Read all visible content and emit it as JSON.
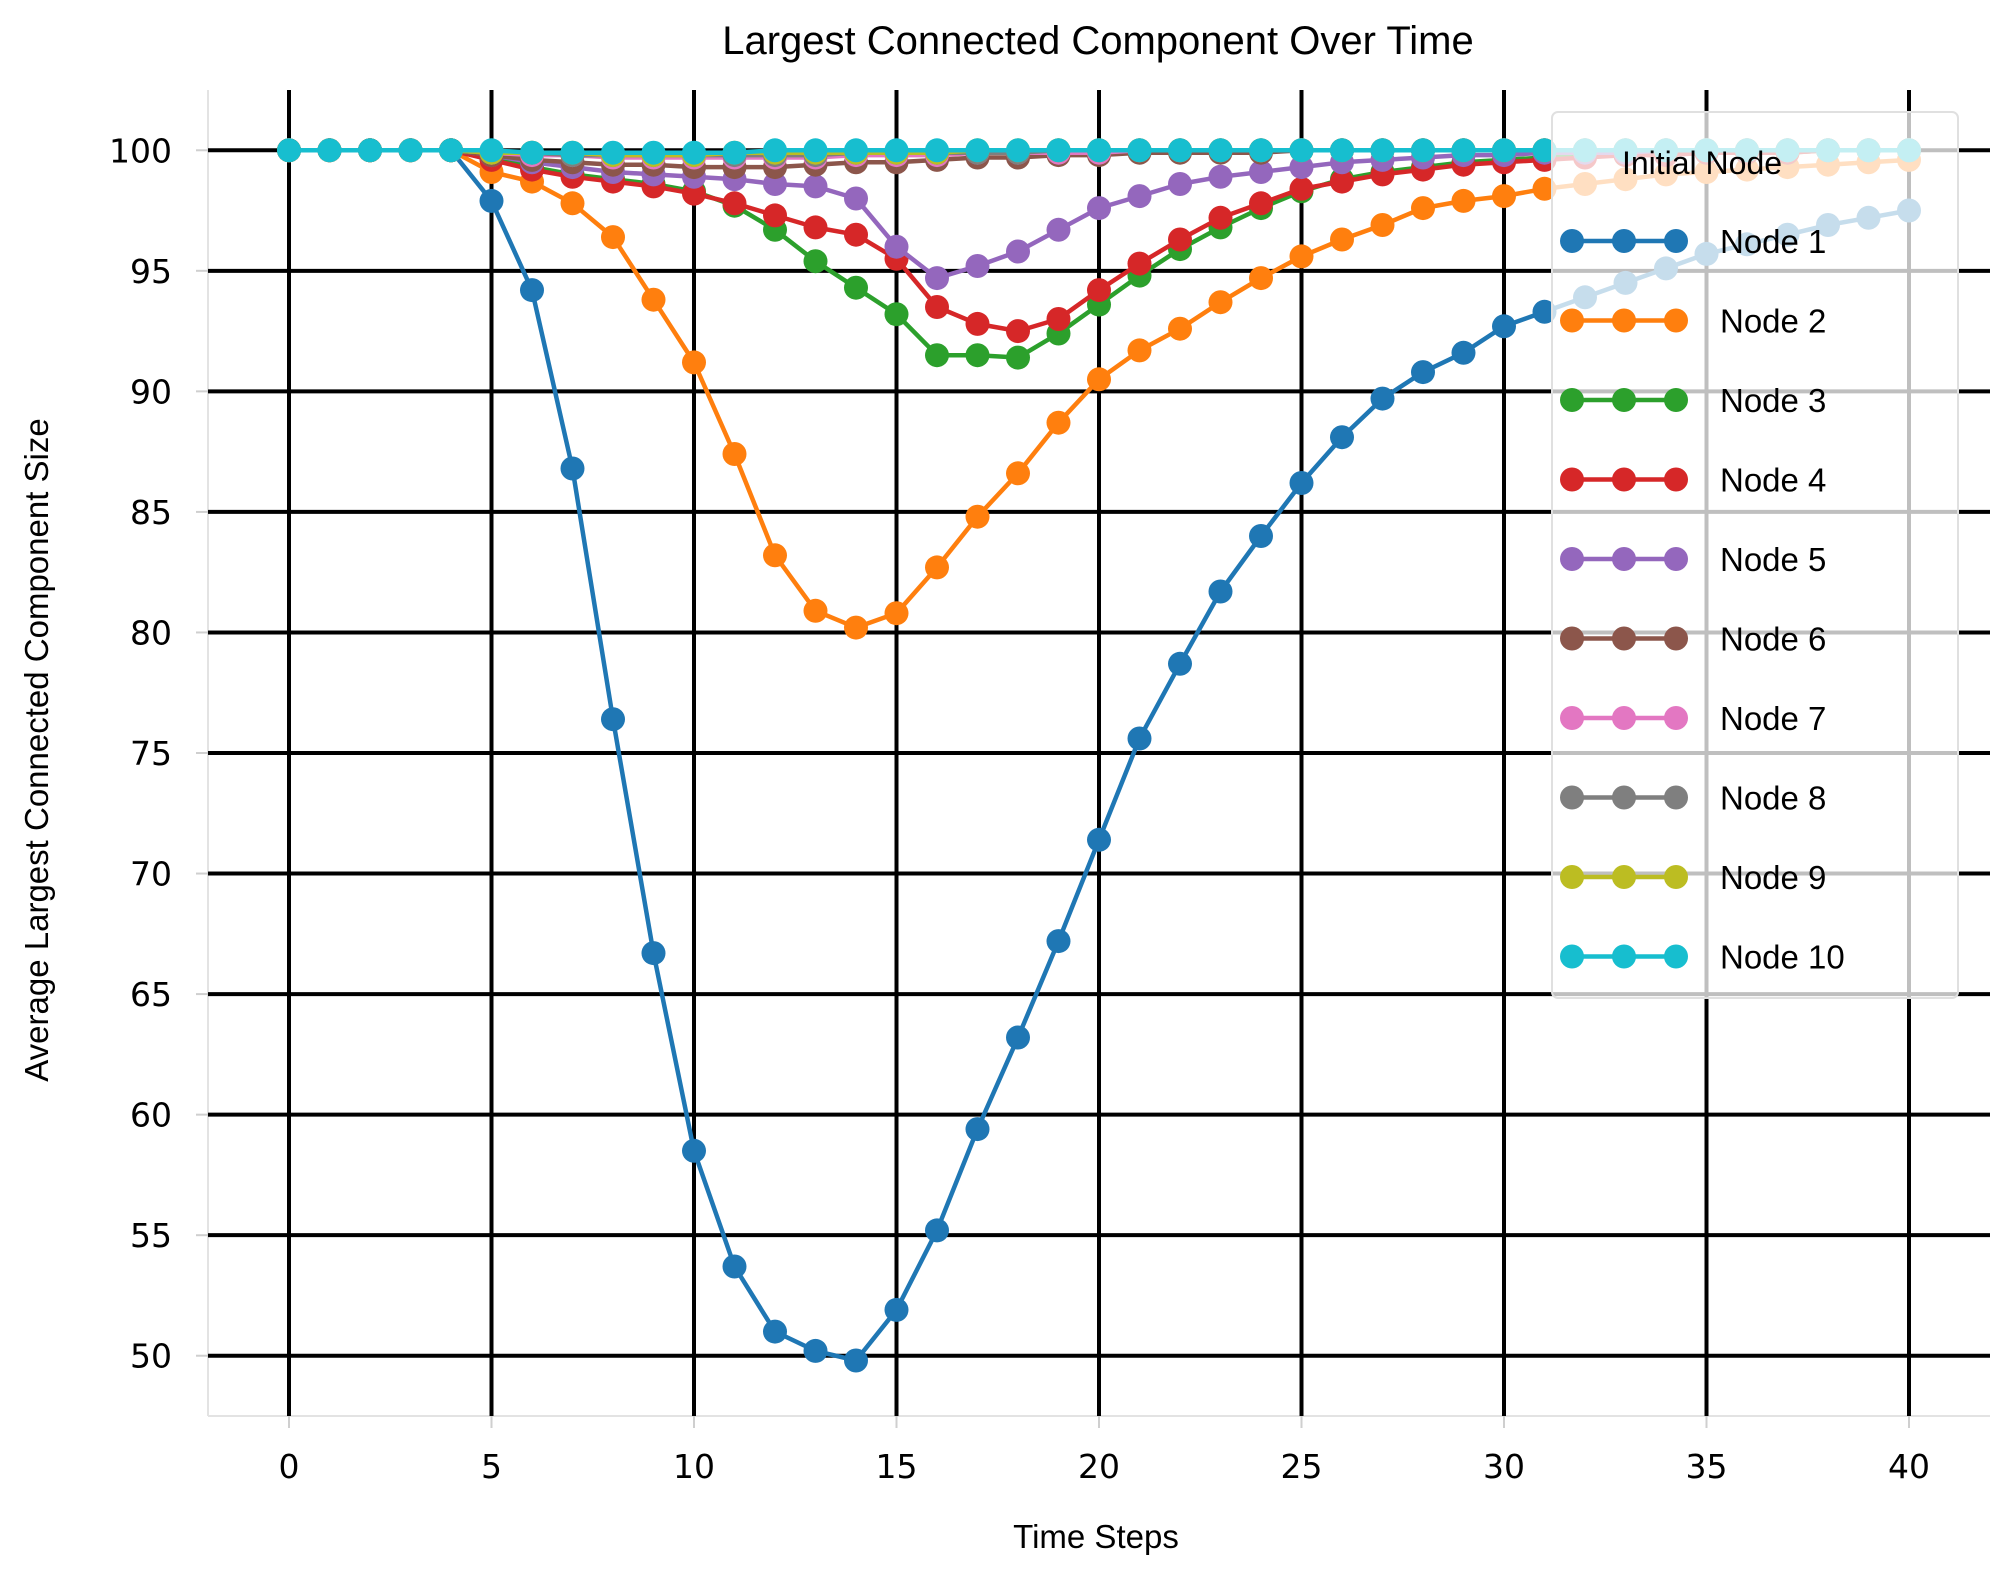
{
  "chart_data": {
    "type": "line",
    "title": "Largest Connected Component Over Time",
    "xlabel": "Time Steps",
    "ylabel": "Average Largest Connected Component Size",
    "xlim": [
      -2,
      42
    ],
    "ylim": [
      47.5,
      102.5
    ],
    "xticks": [
      0,
      5,
      10,
      15,
      20,
      25,
      30,
      35,
      40
    ],
    "yticks": [
      50,
      55,
      60,
      65,
      70,
      75,
      80,
      85,
      90,
      95,
      100
    ],
    "grid": true,
    "legend_title": "Initial Node",
    "legend_position": "top-right",
    "x": [
      0,
      1,
      2,
      3,
      4,
      5,
      6,
      7,
      8,
      9,
      10,
      11,
      12,
      13,
      14,
      15,
      16,
      17,
      18,
      19,
      20,
      21,
      22,
      23,
      24,
      25,
      26,
      27,
      28,
      29,
      30,
      31,
      32,
      33,
      34,
      35,
      36,
      37,
      38,
      39,
      40
    ],
    "series": [
      {
        "name": "Node 1",
        "color": "#1f77b4",
        "values": [
          100,
          100,
          100,
          100,
          100,
          97.9,
          94.2,
          86.8,
          76.4,
          66.7,
          58.5,
          53.7,
          51.0,
          50.2,
          49.8,
          51.9,
          55.2,
          59.4,
          63.2,
          67.2,
          71.4,
          75.6,
          78.7,
          81.7,
          84.0,
          86.2,
          88.1,
          89.7,
          90.8,
          91.6,
          92.7,
          93.3,
          93.9,
          94.5,
          95.1,
          95.7,
          96.1,
          96.5,
          96.9,
          97.2,
          97.5
        ]
      },
      {
        "name": "Node 2",
        "color": "#ff7f0e",
        "values": [
          100,
          100,
          100,
          100,
          100,
          99.1,
          98.7,
          97.8,
          96.4,
          93.8,
          91.2,
          87.4,
          83.2,
          80.9,
          80.2,
          80.8,
          82.7,
          84.8,
          86.6,
          88.7,
          90.5,
          91.7,
          92.6,
          93.7,
          94.7,
          95.6,
          96.3,
          96.9,
          97.6,
          97.9,
          98.1,
          98.4,
          98.6,
          98.8,
          99.0,
          99.1,
          99.2,
          99.3,
          99.4,
          99.5,
          99.6
        ]
      },
      {
        "name": "Node 3",
        "color": "#2ca02c",
        "values": [
          100,
          100,
          100,
          100,
          100,
          99.7,
          99.3,
          99.0,
          98.8,
          98.6,
          98.3,
          97.7,
          96.7,
          95.4,
          94.3,
          93.2,
          91.5,
          91.5,
          91.4,
          92.4,
          93.6,
          94.8,
          95.9,
          96.8,
          97.6,
          98.3,
          98.8,
          99.1,
          99.3,
          99.5,
          99.6,
          99.7,
          99.8,
          99.8,
          99.9,
          99.9,
          99.9,
          99.9,
          100,
          100,
          100
        ]
      },
      {
        "name": "Node 4",
        "color": "#d62728",
        "values": [
          100,
          100,
          100,
          100,
          100,
          99.6,
          99.2,
          98.9,
          98.7,
          98.5,
          98.2,
          97.8,
          97.3,
          96.8,
          96.5,
          95.5,
          93.5,
          92.8,
          92.5,
          93.0,
          94.2,
          95.3,
          96.3,
          97.2,
          97.8,
          98.4,
          98.7,
          99.0,
          99.2,
          99.4,
          99.5,
          99.6,
          99.7,
          99.8,
          99.8,
          99.9,
          99.9,
          99.9,
          100,
          100,
          100
        ]
      },
      {
        "name": "Node 5",
        "color": "#9467bd",
        "values": [
          100,
          100,
          100,
          100,
          100,
          99.8,
          99.5,
          99.3,
          99.1,
          99.0,
          98.9,
          98.8,
          98.6,
          98.5,
          98.0,
          96.0,
          94.7,
          95.2,
          95.8,
          96.7,
          97.6,
          98.1,
          98.6,
          98.9,
          99.1,
          99.3,
          99.5,
          99.6,
          99.7,
          99.8,
          99.8,
          99.9,
          99.9,
          99.9,
          100,
          100,
          100,
          100,
          100,
          100,
          100
        ]
      },
      {
        "name": "Node 6",
        "color": "#8c564b",
        "values": [
          100,
          100,
          100,
          100,
          100,
          99.8,
          99.6,
          99.5,
          99.4,
          99.4,
          99.3,
          99.3,
          99.3,
          99.4,
          99.5,
          99.5,
          99.6,
          99.7,
          99.7,
          99.8,
          99.8,
          99.9,
          99.9,
          99.9,
          99.9,
          100,
          100,
          100,
          100,
          100,
          100,
          100,
          100,
          100,
          100,
          100,
          100,
          100,
          100,
          100,
          100
        ]
      },
      {
        "name": "Node 7",
        "color": "#e377c2",
        "values": [
          100,
          100,
          100,
          100,
          100,
          99.9,
          99.8,
          99.8,
          99.7,
          99.7,
          99.7,
          99.7,
          99.7,
          99.7,
          99.8,
          99.8,
          99.8,
          99.9,
          99.9,
          99.9,
          99.9,
          100,
          100,
          100,
          100,
          100,
          100,
          100,
          100,
          100,
          100,
          100,
          100,
          100,
          100,
          100,
          100,
          100,
          100,
          100,
          100
        ]
      },
      {
        "name": "Node 8",
        "color": "#7f7f7f",
        "values": [
          100,
          100,
          100,
          100,
          100,
          99.9,
          99.9,
          99.8,
          99.8,
          99.8,
          99.8,
          99.8,
          99.8,
          99.8,
          99.9,
          99.9,
          99.9,
          99.9,
          99.9,
          100,
          100,
          100,
          100,
          100,
          100,
          100,
          100,
          100,
          100,
          100,
          100,
          100,
          100,
          100,
          100,
          100,
          100,
          100,
          100,
          100,
          100
        ]
      },
      {
        "name": "Node 9",
        "color": "#bcbd22",
        "values": [
          100,
          100,
          100,
          100,
          100,
          99.9,
          99.9,
          99.9,
          99.8,
          99.8,
          99.8,
          99.9,
          99.9,
          99.9,
          99.9,
          99.9,
          99.9,
          100,
          100,
          100,
          100,
          100,
          100,
          100,
          100,
          100,
          100,
          100,
          100,
          100,
          100,
          100,
          100,
          100,
          100,
          100,
          100,
          100,
          100,
          100,
          100
        ]
      },
      {
        "name": "Node 10",
        "color": "#17becf",
        "values": [
          100,
          100,
          100,
          100,
          100,
          100,
          99.9,
          99.9,
          99.9,
          99.9,
          99.9,
          99.9,
          100,
          100,
          100,
          100,
          100,
          100,
          100,
          100,
          100,
          100,
          100,
          100,
          100,
          100,
          100,
          100,
          100,
          100,
          100,
          100,
          100,
          100,
          100,
          100,
          100,
          100,
          100,
          100,
          100
        ]
      }
    ]
  }
}
